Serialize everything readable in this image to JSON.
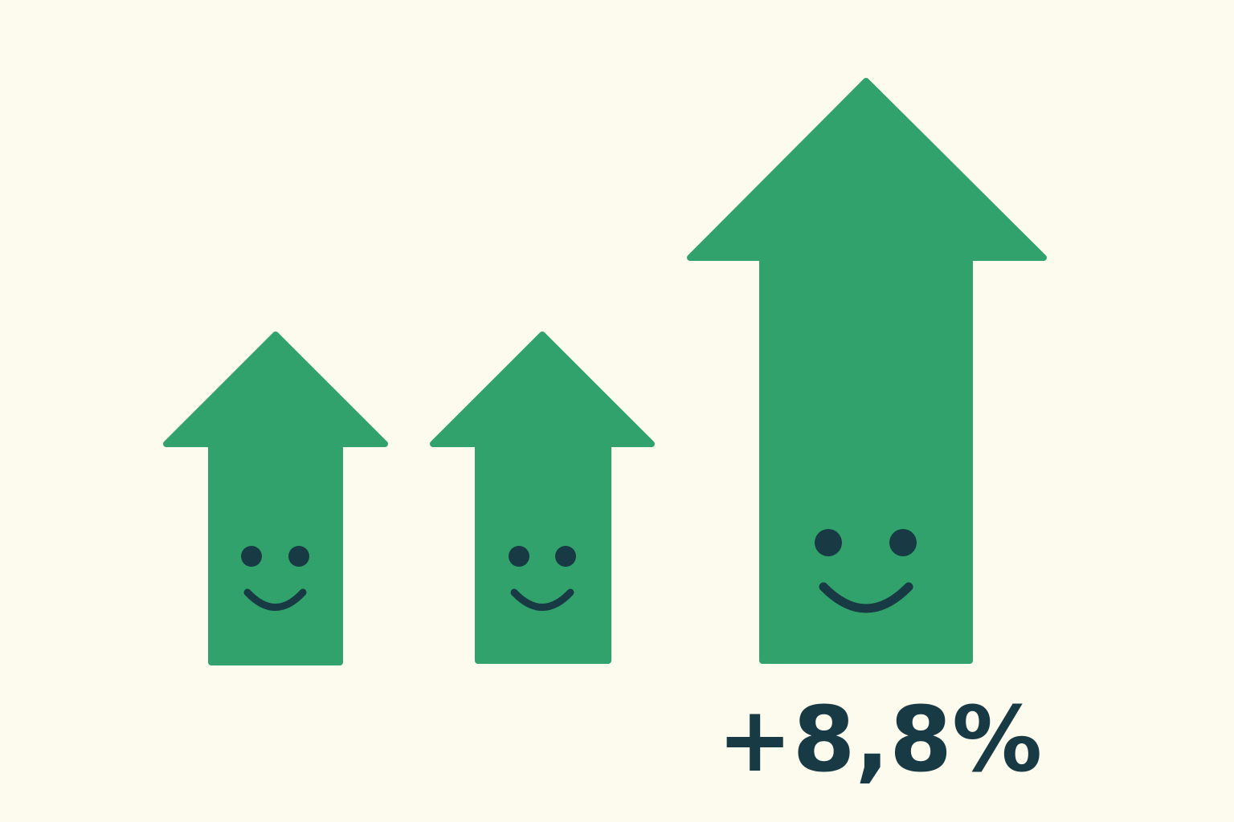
{
  "label": "+8,8%"
}
